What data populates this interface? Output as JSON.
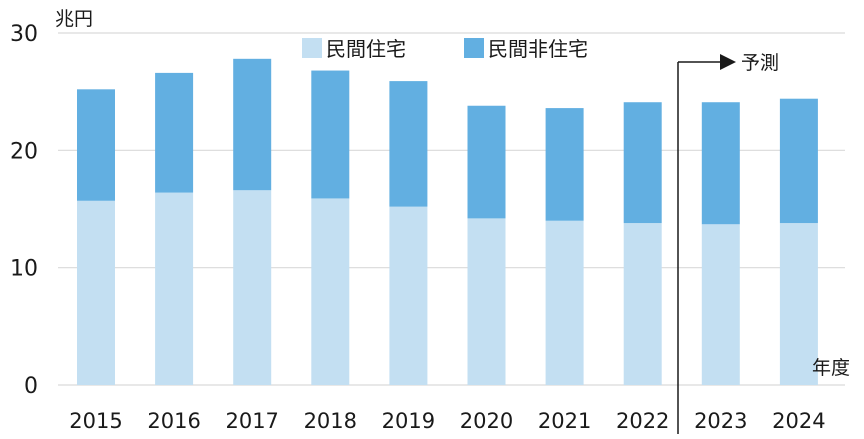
{
  "chart_data": {
    "type": "bar",
    "stacked": true,
    "categories": [
      "2015",
      "2016",
      "2017",
      "2018",
      "2019",
      "2020",
      "2021",
      "2022",
      "2023",
      "2024"
    ],
    "series": [
      {
        "name": "民間住宅",
        "color": "#c3dff2",
        "values": [
          15.7,
          16.4,
          16.6,
          15.9,
          15.2,
          14.2,
          14.0,
          13.8,
          13.7,
          13.8
        ]
      },
      {
        "name": "民間非住宅",
        "color": "#62afe1",
        "values": [
          9.5,
          10.2,
          11.2,
          10.9,
          10.7,
          9.6,
          9.6,
          10.3,
          10.4,
          10.6
        ]
      }
    ],
    "ylim": [
      0,
      30
    ],
    "yticks": [
      0,
      10,
      20,
      30
    ],
    "ylabel": "兆円",
    "xlabel": "年度",
    "grid": true,
    "legend_position": "top",
    "annotation": {
      "text": "予測",
      "starts_before_category": "2023"
    }
  }
}
